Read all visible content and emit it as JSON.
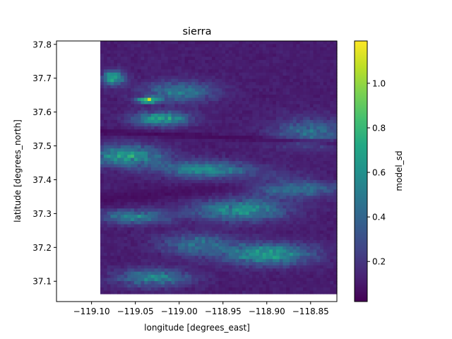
{
  "chart_data": {
    "type": "heatmap",
    "title": "sierra",
    "xlabel": "longitude [degrees_east]",
    "ylabel": "latitude [degrees_north]",
    "colorbar_label": "model_sd",
    "colormap": "viridis",
    "xlim": [
      -119.14,
      -118.82
    ],
    "ylim": [
      37.04,
      37.81
    ],
    "data_extent": {
      "x": [
        -119.09,
        -118.82
      ],
      "y": [
        37.063,
        37.81
      ]
    },
    "x_ticks": [
      -119.1,
      -119.05,
      -119.0,
      -118.95,
      -118.9,
      -118.85
    ],
    "x_tick_labels": [
      "−119.10",
      "−119.05",
      "−119.00",
      "−118.95",
      "−118.90",
      "−118.85"
    ],
    "y_ticks": [
      37.1,
      37.2,
      37.3,
      37.4,
      37.5,
      37.6,
      37.7,
      37.8
    ],
    "y_tick_labels": [
      "37.1",
      "37.2",
      "37.3",
      "37.4",
      "37.5",
      "37.6",
      "37.7",
      "37.8"
    ],
    "colorbar_range": [
      0.02,
      1.19
    ],
    "colorbar_ticks": [
      0.2,
      0.4,
      0.6,
      0.8,
      1.0
    ],
    "colorbar_tick_labels": [
      "0.2",
      "0.4",
      "0.6",
      "0.8",
      "1.0"
    ],
    "grid": false,
    "features": [
      {
        "x": -119.035,
        "y": 37.635,
        "v": 1.15,
        "rx": 0.012,
        "ry": 0.008
      },
      {
        "x": -119.075,
        "y": 37.7,
        "v": 0.85,
        "rx": 0.012,
        "ry": 0.02
      },
      {
        "x": -119.02,
        "y": 37.58,
        "v": 0.8,
        "rx": 0.03,
        "ry": 0.02
      },
      {
        "x": -119.06,
        "y": 37.47,
        "v": 0.75,
        "rx": 0.04,
        "ry": 0.03
      },
      {
        "x": -118.97,
        "y": 37.43,
        "v": 0.65,
        "rx": 0.05,
        "ry": 0.025
      },
      {
        "x": -118.87,
        "y": 37.38,
        "v": 0.6,
        "rx": 0.05,
        "ry": 0.03
      },
      {
        "x": -118.93,
        "y": 37.31,
        "v": 0.7,
        "rx": 0.05,
        "ry": 0.03
      },
      {
        "x": -119.05,
        "y": 37.29,
        "v": 0.6,
        "rx": 0.04,
        "ry": 0.02
      },
      {
        "x": -118.9,
        "y": 37.18,
        "v": 0.75,
        "rx": 0.05,
        "ry": 0.03
      },
      {
        "x": -119.03,
        "y": 37.11,
        "v": 0.6,
        "rx": 0.04,
        "ry": 0.025
      },
      {
        "x": -118.98,
        "y": 37.21,
        "v": 0.5,
        "rx": 0.04,
        "ry": 0.03
      },
      {
        "x": -118.85,
        "y": 37.54,
        "v": 0.5,
        "rx": 0.04,
        "ry": 0.04
      },
      {
        "x": -119.0,
        "y": 37.66,
        "v": 0.55,
        "rx": 0.04,
        "ry": 0.03
      }
    ]
  }
}
